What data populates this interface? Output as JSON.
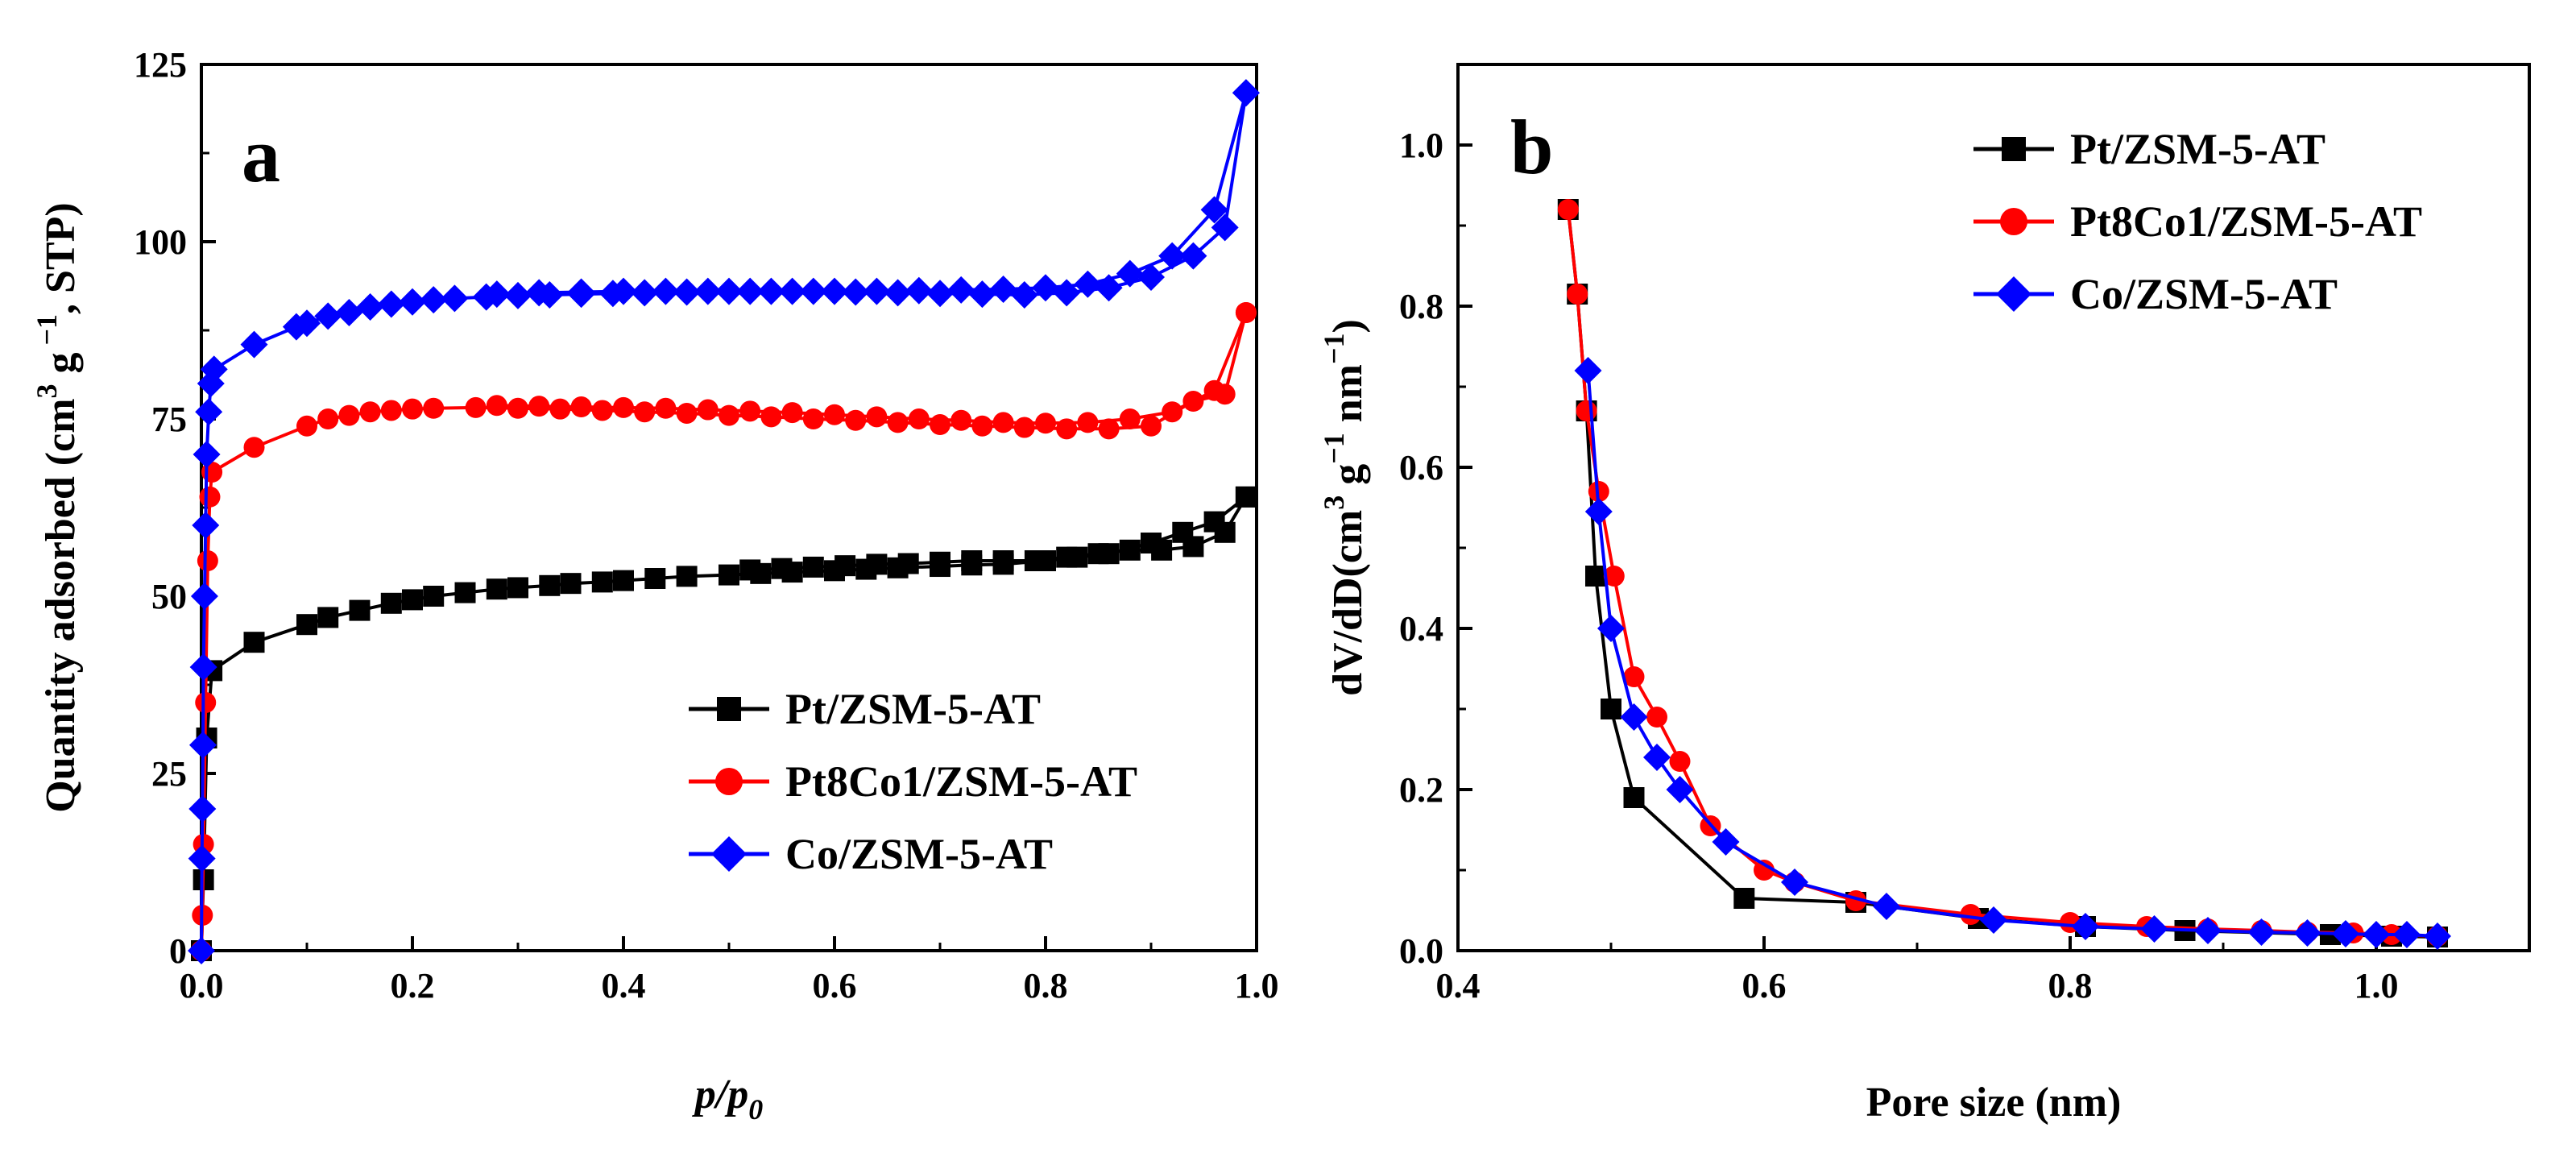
{
  "chart_data": [
    {
      "type": "line",
      "panel_label": "a",
      "xlabel_main": "p/p",
      "xlabel_sub": "0",
      "ylabel_lead": "Quantity adsorbed (cm",
      "ylabel_sup1": "3",
      "ylabel_mid": " g",
      "ylabel_sup2": " −1",
      "ylabel_tail": ", STP)",
      "xlim": [
        0,
        1.0
      ],
      "ylim": [
        0,
        125
      ],
      "xticks": [
        "0.0",
        "0.2",
        "0.4",
        "0.6",
        "0.8",
        "1.0"
      ],
      "yticks": [
        "0",
        "25",
        "50",
        "75",
        "100",
        "125"
      ],
      "legend_position": "bottom-right",
      "series": [
        {
          "name": "Pt/ZSM-5-AT",
          "color": "#000000",
          "marker": "square",
          "x": [
            0.0,
            0.002,
            0.005,
            0.01,
            0.05,
            0.1,
            0.12,
            0.15,
            0.18,
            0.2,
            0.22,
            0.25,
            0.28,
            0.3,
            0.33,
            0.35,
            0.38,
            0.4,
            0.43,
            0.46,
            0.5,
            0.53,
            0.56,
            0.6,
            0.63,
            0.66,
            0.7,
            0.73,
            0.76,
            0.8,
            0.83,
            0.86,
            0.9,
            0.93,
            0.96,
            0.99,
            0.99,
            0.97,
            0.94,
            0.91,
            0.88,
            0.85,
            0.82,
            0.79,
            0.76,
            0.73,
            0.7,
            0.67,
            0.64,
            0.61,
            0.58,
            0.55,
            0.52
          ],
          "y": [
            0,
            10,
            30,
            39.5,
            43.5,
            46,
            47,
            48,
            49,
            49.5,
            50,
            50.5,
            51,
            51.2,
            51.5,
            51.8,
            52,
            52.2,
            52.5,
            52.8,
            53,
            53.2,
            53.4,
            53.6,
            53.8,
            54,
            54.2,
            54.4,
            54.5,
            55,
            55.5,
            56,
            57.5,
            59,
            60.5,
            64,
            64,
            59,
            57,
            56.5,
            56.5,
            56,
            55.5,
            55,
            55,
            55,
            54.8,
            54.6,
            54.5,
            54.3,
            54.1,
            53.9,
            53.7
          ]
        },
        {
          "name": "Pt8Co1/ZSM-5-AT",
          "color": "#ff0000",
          "marker": "circle",
          "x": [
            0.0,
            0.001,
            0.002,
            0.004,
            0.006,
            0.008,
            0.01,
            0.05,
            0.1,
            0.12,
            0.14,
            0.16,
            0.18,
            0.2,
            0.22,
            0.26,
            0.3,
            0.34,
            0.38,
            0.42,
            0.46,
            0.5,
            0.54,
            0.58,
            0.62,
            0.66,
            0.7,
            0.74,
            0.78,
            0.82,
            0.86,
            0.9,
            0.94,
            0.97,
            0.99,
            0.99,
            0.96,
            0.92,
            0.88,
            0.84,
            0.8,
            0.76,
            0.72,
            0.68,
            0.64,
            0.6,
            0.56,
            0.52,
            0.48,
            0.44,
            0.4,
            0.36,
            0.32,
            0.28
          ],
          "y": [
            0,
            5,
            15,
            35,
            55,
            64,
            67.5,
            71,
            74,
            75,
            75.5,
            76,
            76.2,
            76.4,
            76.5,
            76.6,
            76.5,
            76.4,
            76.2,
            76,
            75.8,
            75.5,
            75.3,
            75,
            74.8,
            74.5,
            74.2,
            74,
            73.8,
            73.6,
            73.6,
            74,
            77.5,
            78.5,
            90,
            90,
            79,
            76,
            75,
            74.5,
            74.4,
            74.5,
            74.8,
            75,
            75.3,
            75.6,
            75.9,
            76.1,
            76.3,
            76.5,
            76.6,
            76.7,
            76.8,
            76.9
          ]
        },
        {
          "name": "Co/ZSM-5-AT",
          "color": "#0000ff",
          "marker": "diamond",
          "x": [
            0.0,
            0.0005,
            0.001,
            0.0015,
            0.002,
            0.003,
            0.004,
            0.005,
            0.007,
            0.009,
            0.012,
            0.05,
            0.09,
            0.1,
            0.12,
            0.14,
            0.16,
            0.18,
            0.2,
            0.22,
            0.24,
            0.27,
            0.3,
            0.33,
            0.36,
            0.39,
            0.42,
            0.46,
            0.5,
            0.54,
            0.58,
            0.62,
            0.66,
            0.7,
            0.74,
            0.78,
            0.82,
            0.86,
            0.9,
            0.94,
            0.97,
            0.99,
            0.99,
            0.96,
            0.92,
            0.88,
            0.84,
            0.8,
            0.76,
            0.72,
            0.68,
            0.64,
            0.6,
            0.56,
            0.52,
            0.48,
            0.44,
            0.4,
            0.36,
            0.32,
            0.28
          ],
          "y": [
            0,
            13,
            20,
            29,
            40,
            50,
            60,
            70,
            76,
            80,
            82,
            85.5,
            88,
            88.5,
            89.5,
            90,
            90.8,
            91.2,
            91.5,
            91.8,
            92,
            92.2,
            92.4,
            92.5,
            92.6,
            92.7,
            92.8,
            92.9,
            93,
            93,
            93,
            92.9,
            92.8,
            92.7,
            92.6,
            92.5,
            92.8,
            93.5,
            95,
            98,
            102,
            121,
            121,
            104.5,
            98,
            95.5,
            94,
            93.5,
            93.3,
            93.2,
            93.1,
            93,
            93,
            93,
            93,
            93,
            93,
            93,
            92.9,
            92.8,
            92.6
          ]
        }
      ]
    },
    {
      "type": "line",
      "panel_label": "b",
      "xlabel": "Pore size (nm)",
      "ylabel_lead": "dV/dD(cm",
      "ylabel_sup1": "3",
      "ylabel_mid": "  g",
      "ylabel_sup2": "−1",
      "ylabel_mid2": "  nm",
      "ylabel_sup3": "−1",
      "ylabel_tail": ")",
      "xlim": [
        0.4,
        1.1
      ],
      "ylim": [
        0,
        1.1
      ],
      "xticks": [
        "0.4",
        "0.6",
        "0.8",
        "1.0"
      ],
      "yticks": [
        "0.0",
        "0.2",
        "0.4",
        "0.6",
        "0.8",
        "1.0"
      ],
      "legend_position": "top-right",
      "series": [
        {
          "name": "Pt/ZSM-5-AT",
          "color": "#000000",
          "marker": "square",
          "x": [
            0.472,
            0.478,
            0.484,
            0.49,
            0.5,
            0.515,
            0.587,
            0.66,
            0.74,
            0.81,
            0.875,
            0.97,
            1.01,
            1.04
          ],
          "y": [
            0.92,
            0.815,
            0.67,
            0.465,
            0.3,
            0.19,
            0.065,
            0.06,
            0.04,
            0.03,
            0.025,
            0.02,
            0.018,
            0.017
          ]
        },
        {
          "name": "Pt8Co1/ZSM-5-AT",
          "color": "#ff0000",
          "marker": "circle",
          "x": [
            0.472,
            0.478,
            0.484,
            0.492,
            0.502,
            0.515,
            0.53,
            0.545,
            0.565,
            0.6,
            0.62,
            0.66,
            0.735,
            0.8,
            0.85,
            0.89,
            0.925,
            0.955,
            0.985,
            1.01,
            1.04
          ],
          "y": [
            0.92,
            0.815,
            0.67,
            0.57,
            0.465,
            0.34,
            0.29,
            0.235,
            0.155,
            0.1,
            0.085,
            0.062,
            0.045,
            0.035,
            0.03,
            0.027,
            0.025,
            0.023,
            0.022,
            0.02,
            0.018
          ]
        },
        {
          "name": "Co/ZSM-5-AT",
          "color": "#0000ff",
          "marker": "diamond",
          "x": [
            0.485,
            0.492,
            0.5,
            0.515,
            0.53,
            0.545,
            0.575,
            0.62,
            0.68,
            0.75,
            0.81,
            0.855,
            0.89,
            0.925,
            0.955,
            0.98,
            1.0,
            1.02,
            1.04
          ],
          "y": [
            0.72,
            0.545,
            0.4,
            0.29,
            0.24,
            0.2,
            0.135,
            0.085,
            0.055,
            0.038,
            0.03,
            0.027,
            0.025,
            0.023,
            0.022,
            0.021,
            0.02,
            0.02,
            0.018
          ]
        }
      ]
    }
  ]
}
